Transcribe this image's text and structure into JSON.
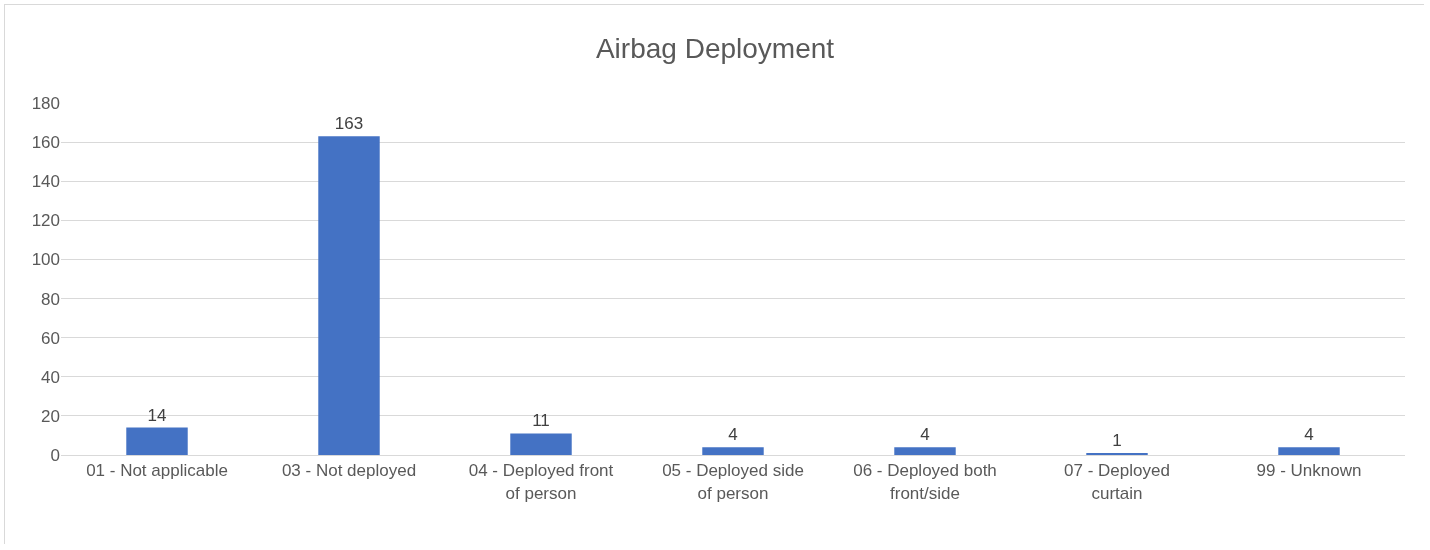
{
  "chart_data": {
    "type": "bar",
    "title": "Airbag Deployment",
    "categories": [
      "01 - Not applicable",
      "03 - Not deployed",
      "04 - Deployed front of person",
      "05 - Deployed side of person",
      "06 - Deployed both front/side",
      "07 - Deployed curtain",
      "99 - Unknown"
    ],
    "values": [
      14,
      163,
      11,
      4,
      4,
      1,
      4
    ],
    "color": "#4472c4",
    "ylim": [
      0,
      180
    ],
    "yticks": [
      0,
      20,
      40,
      60,
      80,
      100,
      120,
      140,
      160,
      180
    ],
    "grid": "y",
    "data_labels": true
  }
}
